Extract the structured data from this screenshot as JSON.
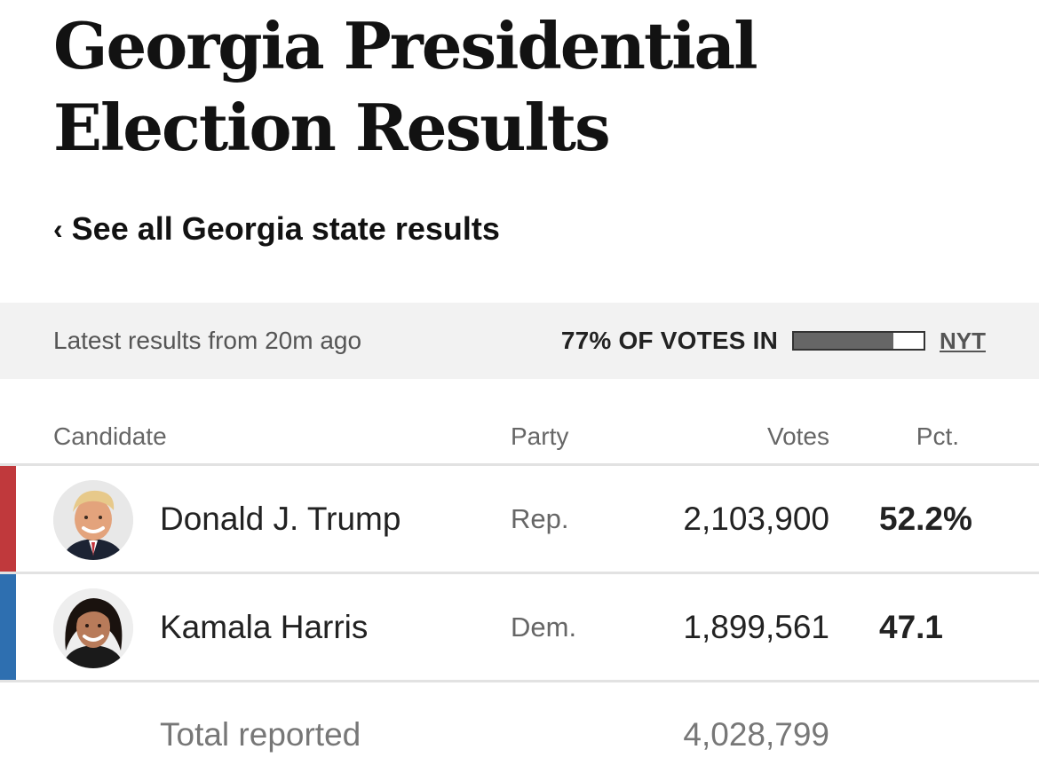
{
  "page": {
    "title": "Georgia Presidential Election Results",
    "back_link": "See all Georgia state results"
  },
  "status": {
    "updated_text": "Latest results from 20m ago",
    "votes_in_text": "77% OF VOTES IN",
    "votes_in_fraction": 0.77,
    "source": "NYT"
  },
  "table": {
    "headers": {
      "candidate": "Candidate",
      "party": "Party",
      "votes": "Votes",
      "pct": "Pct."
    },
    "rows": [
      {
        "name": "Donald J. Trump",
        "party": "Rep.",
        "votes": "2,103,900",
        "pct": "52.2%",
        "party_color": "#c0393c"
      },
      {
        "name": "Kamala Harris",
        "party": "Dem.",
        "votes": "1,899,561",
        "pct": "47.1",
        "party_color": "#2e6fb0"
      }
    ],
    "total": {
      "label": "Total reported",
      "votes": "4,028,799"
    }
  },
  "icons": {
    "back": "chevron-left-icon"
  }
}
